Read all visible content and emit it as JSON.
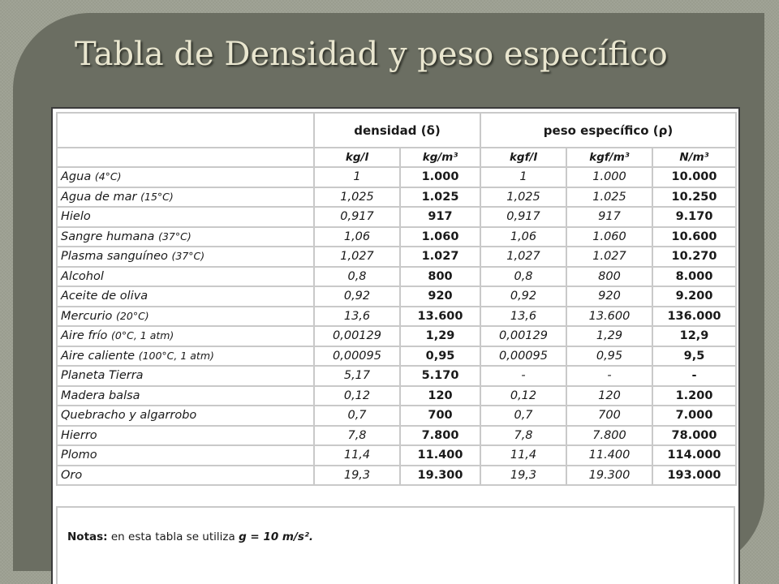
{
  "slide": {
    "title": "Tabla de Densidad y peso específico"
  },
  "table": {
    "group_headers": {
      "density": "densidad (δ)",
      "specific_weight": "peso específico (ρ)"
    },
    "units": [
      "kg/l",
      "kg/m³",
      "kgf/l",
      "kgf/m³",
      "N/m³"
    ],
    "rows": [
      {
        "name": "Agua",
        "cond": "(4°C)",
        "values": [
          "1",
          "1.000",
          "1",
          "1.000",
          "10.000"
        ]
      },
      {
        "name": "Agua de mar",
        "cond": "(15°C)",
        "values": [
          "1,025",
          "1.025",
          "1,025",
          "1.025",
          "10.250"
        ]
      },
      {
        "name": "Hielo",
        "cond": "",
        "values": [
          "0,917",
          "917",
          "0,917",
          "917",
          "9.170"
        ]
      },
      {
        "name": "Sangre humana",
        "cond": "(37°C)",
        "values": [
          "1,06",
          "1.060",
          "1,06",
          "1.060",
          "10.600"
        ]
      },
      {
        "name": "Plasma sanguíneo",
        "cond": "(37°C)",
        "values": [
          "1,027",
          "1.027",
          "1,027",
          "1.027",
          "10.270"
        ]
      },
      {
        "name": "Alcohol",
        "cond": "",
        "values": [
          "0,8",
          "800",
          "0,8",
          "800",
          "8.000"
        ]
      },
      {
        "name": "Aceite de oliva",
        "cond": "",
        "values": [
          "0,92",
          "920",
          "0,92",
          "920",
          "9.200"
        ]
      },
      {
        "name": "Mercurio",
        "cond": "(20°C)",
        "values": [
          "13,6",
          "13.600",
          "13,6",
          "13.600",
          "136.000"
        ]
      },
      {
        "name": "Aire frío",
        "cond": "(0°C, 1 atm)",
        "values": [
          "0,00129",
          "1,29",
          "0,00129",
          "1,29",
          "12,9"
        ]
      },
      {
        "name": "Aire caliente",
        "cond": "(100°C, 1 atm)",
        "values": [
          "0,00095",
          "0,95",
          "0,00095",
          "0,95",
          "9,5"
        ]
      },
      {
        "name": "Planeta Tierra",
        "cond": "",
        "values": [
          "5,17",
          "5.170",
          "-",
          "-",
          "-"
        ]
      },
      {
        "name": "Madera balsa",
        "cond": "",
        "values": [
          "0,12",
          "120",
          "0,12",
          "120",
          "1.200"
        ]
      },
      {
        "name": "Quebracho y algarrobo",
        "cond": "",
        "values": [
          "0,7",
          "700",
          "0,7",
          "700",
          "7.000"
        ]
      },
      {
        "name": "Hierro",
        "cond": "",
        "values": [
          "7,8",
          "7.800",
          "7,8",
          "7.800",
          "78.000"
        ]
      },
      {
        "name": "Plomo",
        "cond": "",
        "values": [
          "11,4",
          "11.400",
          "11,4",
          "11.400",
          "114.000"
        ]
      },
      {
        "name": "Oro",
        "cond": "",
        "values": [
          "19,3",
          "19.300",
          "19,3",
          "19.300",
          "193.000"
        ]
      }
    ]
  },
  "notes": {
    "label": "Notas:",
    "text": "en esta tabla se utiliza",
    "formula": "g = 10 m/s²."
  }
}
